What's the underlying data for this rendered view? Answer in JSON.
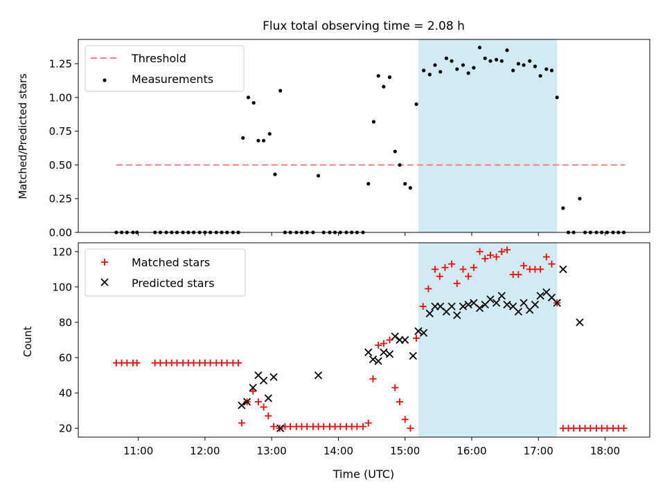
{
  "figure": {
    "title": "Flux total observing time = 2.08 h",
    "xlabel": "Time (UTC)",
    "x_ticks": [
      "11:00",
      "12:00",
      "13:00",
      "14:00",
      "15:00",
      "16:00",
      "17:00",
      "18:00"
    ]
  },
  "chart_data": [
    {
      "type": "scatter",
      "title": "Flux total observing time = 2.08 h",
      "xlabel": "",
      "ylabel": "Matched/Predicted stars",
      "x_unit": "hours UTC",
      "xlim": [
        10.1,
        18.67
      ],
      "ylim": [
        0,
        1.43
      ],
      "y_ticks": [
        "0.00",
        "0.25",
        "0.50",
        "0.75",
        "1.00",
        "1.25"
      ],
      "y_tick_values": [
        0,
        0.25,
        0.5,
        0.75,
        1.0,
        1.25
      ],
      "grid": false,
      "legend_position": "upper-left",
      "shaded_interval": {
        "x_start": 15.2,
        "x_end": 17.28,
        "color": "#add8e6"
      },
      "threshold": {
        "name": "Threshold",
        "value": 0.5,
        "x_start": 10.67,
        "x_end": 18.3,
        "color": "#ff7f7f",
        "style": "dashed"
      },
      "series": [
        {
          "name": "Measurements",
          "marker": "dot",
          "color": "#000000",
          "points": [
            [
              10.67,
              0
            ],
            [
              10.75,
              0
            ],
            [
              10.83,
              0
            ],
            [
              10.92,
              0
            ],
            [
              10.98,
              0
            ],
            [
              11.25,
              0
            ],
            [
              11.33,
              0
            ],
            [
              11.42,
              0
            ],
            [
              11.5,
              0
            ],
            [
              11.58,
              0
            ],
            [
              11.67,
              0
            ],
            [
              11.75,
              0
            ],
            [
              11.83,
              0
            ],
            [
              11.92,
              0
            ],
            [
              12.0,
              0
            ],
            [
              12.08,
              0
            ],
            [
              12.17,
              0
            ],
            [
              12.25,
              0
            ],
            [
              12.33,
              0
            ],
            [
              12.42,
              0
            ],
            [
              12.5,
              0
            ],
            [
              12.57,
              0.7
            ],
            [
              12.65,
              1.0
            ],
            [
              12.73,
              0.96
            ],
            [
              12.8,
              0.68
            ],
            [
              12.88,
              0.68
            ],
            [
              12.97,
              0.73
            ],
            [
              13.05,
              0.43
            ],
            [
              13.13,
              1.05
            ],
            [
              13.2,
              0
            ],
            [
              13.28,
              0
            ],
            [
              13.37,
              0
            ],
            [
              13.45,
              0
            ],
            [
              13.53,
              0
            ],
            [
              13.62,
              0
            ],
            [
              13.7,
              0.42
            ],
            [
              13.78,
              0
            ],
            [
              13.87,
              0
            ],
            [
              13.95,
              0
            ],
            [
              14.03,
              0
            ],
            [
              14.12,
              0
            ],
            [
              14.2,
              0
            ],
            [
              14.28,
              0
            ],
            [
              14.37,
              0
            ],
            [
              14.45,
              0.36
            ],
            [
              14.53,
              0.82
            ],
            [
              14.6,
              1.16
            ],
            [
              14.68,
              1.08
            ],
            [
              14.77,
              1.15
            ],
            [
              14.85,
              0.6
            ],
            [
              14.92,
              0.5
            ],
            [
              15.0,
              0.36
            ],
            [
              15.08,
              0.33
            ],
            [
              15.17,
              0.95
            ],
            [
              15.28,
              1.2
            ],
            [
              15.37,
              1.17
            ],
            [
              15.45,
              1.24
            ],
            [
              15.53,
              1.19
            ],
            [
              15.62,
              1.29
            ],
            [
              15.7,
              1.27
            ],
            [
              15.78,
              1.21
            ],
            [
              15.87,
              1.24
            ],
            [
              15.95,
              1.18
            ],
            [
              16.03,
              1.22
            ],
            [
              16.12,
              1.37
            ],
            [
              16.2,
              1.29
            ],
            [
              16.28,
              1.27
            ],
            [
              16.37,
              1.28
            ],
            [
              16.45,
              1.27
            ],
            [
              16.53,
              1.35
            ],
            [
              16.62,
              1.2
            ],
            [
              16.7,
              1.25
            ],
            [
              16.78,
              1.24
            ],
            [
              16.87,
              1.27
            ],
            [
              16.95,
              1.23
            ],
            [
              17.03,
              1.16
            ],
            [
              17.12,
              1.21
            ],
            [
              17.2,
              1.2
            ],
            [
              17.28,
              1.0
            ],
            [
              17.37,
              0.18
            ],
            [
              17.45,
              0
            ],
            [
              17.53,
              0
            ],
            [
              17.62,
              0.25
            ],
            [
              17.7,
              0
            ],
            [
              17.78,
              0
            ],
            [
              17.87,
              0
            ],
            [
              17.95,
              0
            ],
            [
              18.03,
              0
            ],
            [
              18.12,
              0
            ],
            [
              18.2,
              0
            ],
            [
              18.28,
              0
            ]
          ]
        }
      ]
    },
    {
      "type": "scatter",
      "title": "",
      "xlabel": "Time (UTC)",
      "ylabel": "Count",
      "x_unit": "hours UTC",
      "xlim": [
        10.1,
        18.67
      ],
      "ylim": [
        15,
        125
      ],
      "y_ticks": [
        "20",
        "40",
        "60",
        "80",
        "100",
        "120"
      ],
      "y_tick_values": [
        20,
        40,
        60,
        80,
        100,
        120
      ],
      "grid": false,
      "legend_position": "upper-left",
      "shaded_interval": {
        "x_start": 15.2,
        "x_end": 17.28,
        "color": "#add8e6"
      },
      "series": [
        {
          "name": "Matched stars",
          "marker": "plus",
          "color": "#ff0000",
          "points": [
            [
              10.67,
              57
            ],
            [
              10.75,
              57
            ],
            [
              10.83,
              57
            ],
            [
              10.92,
              57
            ],
            [
              10.98,
              57
            ],
            [
              11.25,
              57
            ],
            [
              11.33,
              57
            ],
            [
              11.42,
              57
            ],
            [
              11.5,
              57
            ],
            [
              11.58,
              57
            ],
            [
              11.67,
              57
            ],
            [
              11.75,
              57
            ],
            [
              11.83,
              57
            ],
            [
              11.92,
              57
            ],
            [
              12.0,
              57
            ],
            [
              12.08,
              57
            ],
            [
              12.17,
              57
            ],
            [
              12.25,
              57
            ],
            [
              12.33,
              57
            ],
            [
              12.42,
              57
            ],
            [
              12.5,
              57
            ],
            [
              12.55,
              23
            ],
            [
              12.63,
              35
            ],
            [
              12.72,
              41
            ],
            [
              12.8,
              35
            ],
            [
              12.88,
              32
            ],
            [
              12.95,
              27
            ],
            [
              13.03,
              21
            ],
            [
              13.12,
              20
            ],
            [
              13.2,
              21
            ],
            [
              13.28,
              21
            ],
            [
              13.37,
              21
            ],
            [
              13.45,
              21
            ],
            [
              13.53,
              21
            ],
            [
              13.62,
              21
            ],
            [
              13.7,
              21
            ],
            [
              13.78,
              21
            ],
            [
              13.87,
              21
            ],
            [
              13.95,
              21
            ],
            [
              14.03,
              21
            ],
            [
              14.12,
              21
            ],
            [
              14.2,
              21
            ],
            [
              14.28,
              21
            ],
            [
              14.37,
              21
            ],
            [
              14.45,
              23
            ],
            [
              14.52,
              48
            ],
            [
              14.6,
              67
            ],
            [
              14.68,
              68
            ],
            [
              14.77,
              70
            ],
            [
              14.85,
              43
            ],
            [
              14.92,
              35
            ],
            [
              15.0,
              25
            ],
            [
              15.08,
              20
            ],
            [
              15.17,
              71
            ],
            [
              15.27,
              89
            ],
            [
              15.35,
              99
            ],
            [
              15.45,
              110
            ],
            [
              15.52,
              106
            ],
            [
              15.6,
              111
            ],
            [
              15.7,
              113
            ],
            [
              15.78,
              102
            ],
            [
              15.87,
              110
            ],
            [
              15.95,
              106
            ],
            [
              16.03,
              111
            ],
            [
              16.12,
              120
            ],
            [
              16.2,
              116
            ],
            [
              16.28,
              118
            ],
            [
              16.37,
              117
            ],
            [
              16.45,
              120
            ],
            [
              16.53,
              121
            ],
            [
              16.62,
              107
            ],
            [
              16.7,
              107
            ],
            [
              16.78,
              112
            ],
            [
              16.87,
              110
            ],
            [
              16.95,
              110
            ],
            [
              17.03,
              110
            ],
            [
              17.12,
              117
            ],
            [
              17.2,
              113
            ],
            [
              17.28,
              91
            ],
            [
              17.37,
              20
            ],
            [
              17.45,
              20
            ],
            [
              17.53,
              20
            ],
            [
              17.62,
              20
            ],
            [
              17.7,
              20
            ],
            [
              17.78,
              20
            ],
            [
              17.87,
              20
            ],
            [
              17.95,
              20
            ],
            [
              18.03,
              20
            ],
            [
              18.12,
              20
            ],
            [
              18.2,
              20
            ],
            [
              18.28,
              20
            ]
          ]
        },
        {
          "name": "Predicted stars",
          "marker": "x",
          "color": "#000000",
          "points": [
            [
              12.55,
              33
            ],
            [
              12.63,
              35
            ],
            [
              12.72,
              43
            ],
            [
              12.8,
              50
            ],
            [
              12.88,
              47
            ],
            [
              12.95,
              37
            ],
            [
              13.03,
              49
            ],
            [
              13.13,
              20
            ],
            [
              13.7,
              50
            ],
            [
              14.45,
              63
            ],
            [
              14.52,
              59
            ],
            [
              14.6,
              58
            ],
            [
              14.68,
              63
            ],
            [
              14.77,
              62
            ],
            [
              14.85,
              72
            ],
            [
              14.92,
              70
            ],
            [
              15.0,
              70
            ],
            [
              15.12,
              61
            ],
            [
              15.2,
              75
            ],
            [
              15.28,
              74
            ],
            [
              15.37,
              85
            ],
            [
              15.45,
              89
            ],
            [
              15.53,
              89
            ],
            [
              15.62,
              86
            ],
            [
              15.7,
              89
            ],
            [
              15.78,
              84
            ],
            [
              15.87,
              89
            ],
            [
              15.95,
              90
            ],
            [
              16.03,
              91
            ],
            [
              16.12,
              88
            ],
            [
              16.2,
              90
            ],
            [
              16.28,
              93
            ],
            [
              16.37,
              91
            ],
            [
              16.45,
              95
            ],
            [
              16.53,
              90
            ],
            [
              16.62,
              89
            ],
            [
              16.7,
              86
            ],
            [
              16.78,
              91
            ],
            [
              16.87,
              87
            ],
            [
              16.95,
              90
            ],
            [
              17.03,
              95
            ],
            [
              17.12,
              97
            ],
            [
              17.2,
              94
            ],
            [
              17.28,
              91
            ],
            [
              17.37,
              110
            ],
            [
              17.62,
              80
            ]
          ]
        }
      ]
    }
  ]
}
